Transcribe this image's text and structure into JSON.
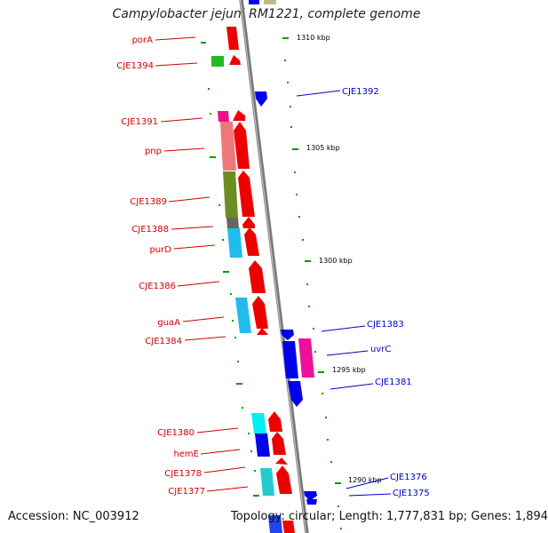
{
  "title": "Campylobacter jejuni RM1221, complete genome",
  "accession": "Accession: NC_003912",
  "topology": "Topology: circular; Length: 1,777,831 bp; Genes: 1,894",
  "colors": {
    "forward_label": "#d00000",
    "reverse_label": "#0000cc",
    "forward_gene": "#ff0000",
    "reverse_gene": "#0000ee",
    "backbone": "#888888",
    "gc_tick": "#009900"
  },
  "scale_ticks": [
    "1310 kbp",
    "1305 kbp",
    "1300 kbp",
    "1295 kbp",
    "1290 kbp"
  ],
  "forward_labels": [
    "porA",
    "CJE1394",
    "CJE1391",
    "pnp",
    "CJE1389",
    "CJE1388",
    "purD",
    "CJE1386",
    "guaA",
    "CJE1384",
    "CJE1380",
    "hemE",
    "CJE1378",
    "CJE1377"
  ],
  "reverse_labels": [
    "CJE1392",
    "CJE1383",
    "uvrC",
    "CJE1381",
    "CJE1376",
    "CJE1375"
  ]
}
